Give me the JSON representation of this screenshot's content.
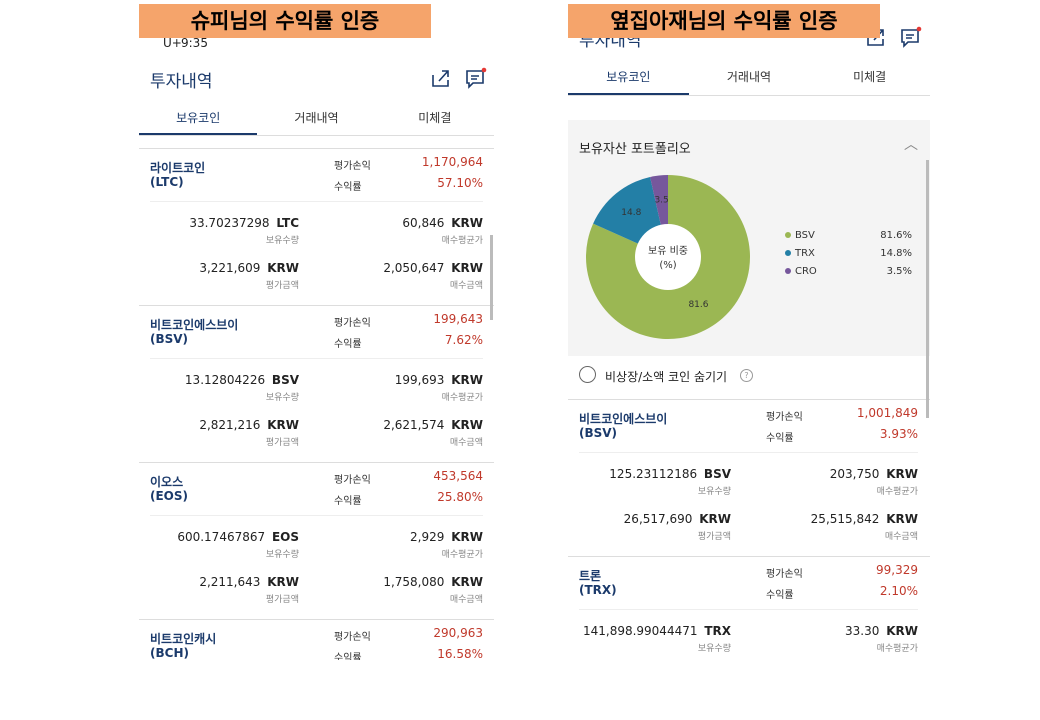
{
  "labels": {
    "pnl": "평가손익",
    "return": "수익률",
    "quantity": "보유수량",
    "avg_price": "매수평균가",
    "eval_amount": "평가금액",
    "buy_amount": "매수금액"
  },
  "left": {
    "banner": "슈피님의 수익률 인증",
    "status": {
      "carrier": "U+",
      "time": "9:35"
    },
    "title": "투자내역",
    "tabs": [
      "보유코인",
      "거래내역",
      "미체결"
    ],
    "coins": [
      {
        "name": "라이트코인",
        "symbol": "(LTC)",
        "pnl": "1,170,964",
        "return": "57.10%",
        "quantity": "33.70237298",
        "unit": "LTC",
        "avg_price": "60,846",
        "currency": "KRW",
        "eval_amount": "3,221,609",
        "buy_amount": "2,050,647"
      },
      {
        "name": "비트코인에스브이",
        "symbol": "(BSV)",
        "pnl": "199,643",
        "return": "7.62%",
        "quantity": "13.12804226",
        "unit": "BSV",
        "avg_price": "199,693",
        "currency": "KRW",
        "eval_amount": "2,821,216",
        "buy_amount": "2,621,574"
      },
      {
        "name": "이오스",
        "symbol": "(EOS)",
        "pnl": "453,564",
        "return": "25.80%",
        "quantity": "600.17467867",
        "unit": "EOS",
        "avg_price": "2,929",
        "currency": "KRW",
        "eval_amount": "2,211,643",
        "buy_amount": "1,758,080"
      },
      {
        "name": "비트코인캐시",
        "symbol": "(BCH)",
        "pnl": "290,963",
        "return": "16.58%"
      }
    ]
  },
  "right": {
    "banner": "옆집아재님의 수익률 인증",
    "title": "투자내역",
    "tabs": [
      "보유코인",
      "거래내역",
      "미체결"
    ],
    "portfolio": {
      "title": "보유자산 포트폴리오",
      "center_label": [
        "보유 비중",
        "(%)"
      ],
      "chart_data": {
        "type": "pie",
        "categories": [
          "BSV",
          "TRX",
          "CRO"
        ],
        "values": [
          81.6,
          14.8,
          3.5
        ],
        "value_labels": [
          "81.6%",
          "14.8%",
          "3.5%"
        ],
        "colors": [
          "#9bb753",
          "#237fa6",
          "#76579c"
        ]
      }
    },
    "hide_small": "비상장/소액 코인 숨기기",
    "coins": [
      {
        "name": "비트코인에스브이",
        "symbol": "(BSV)",
        "pnl": "1,001,849",
        "return": "3.93%",
        "quantity": "125.23112186",
        "unit": "BSV",
        "avg_price": "203,750",
        "currency": "KRW",
        "eval_amount": "26,517,690",
        "buy_amount": "25,515,842"
      },
      {
        "name": "트론",
        "symbol": "(TRX)",
        "pnl": "99,329",
        "return": "2.10%",
        "quantity": "141,898.99044471",
        "unit": "TRX",
        "avg_price": "33.30",
        "currency": "KRW"
      }
    ]
  }
}
